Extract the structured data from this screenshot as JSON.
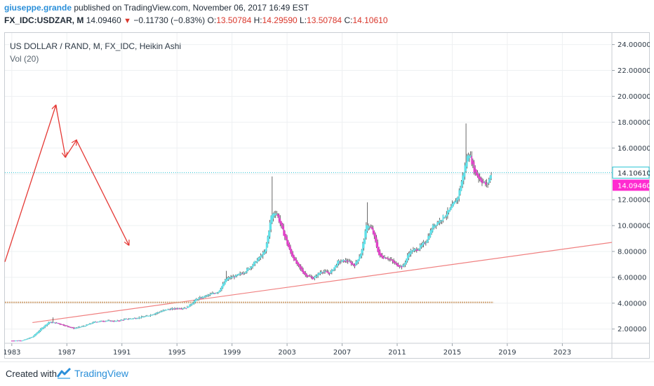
{
  "header": {
    "username": "giuseppe.grande",
    "published_text": "published on TradingView.com, November 06, 2017 16:49 EST",
    "symbol": "FX_IDC:USDZAR, M",
    "last": "14.09460",
    "change_arrow": "▼",
    "change": "−0.11730 (−0.83%)",
    "o_label": "O:",
    "o_value": "13.50784",
    "h_label": "H:",
    "h_value": "14.29590",
    "l_label": "L:",
    "l_value": "13.50784",
    "c_label": "C:",
    "c_value": "14.10610"
  },
  "footer": {
    "created_with": "Created with",
    "brand": "TradingView",
    "logo_icon": "tradingview-logo-icon"
  },
  "colors": {
    "up_body": "#5fe0e8",
    "down_body": "#e040c8",
    "wick": "#444444",
    "trendline": "#f08080",
    "hline": "#d2a679",
    "arrows": "#e53935",
    "last_line": "#29c5d4",
    "close_badge": "#ff2bd0",
    "last_badge_border": "#29c5d4"
  },
  "chart_data": {
    "type": "candlestick",
    "title": "US DOLLAR / RAND, M, FX_IDC, Heikin Ashi",
    "indicator": "Vol (20)",
    "style": "Heikin Ashi",
    "timeframe": "Monthly",
    "x_axis": {
      "ticks": [
        "1983",
        "1987",
        "1991",
        "1995",
        "1999",
        "2003",
        "2007",
        "2011",
        "2015",
        "2019",
        "2023"
      ],
      "range": [
        1982.5,
        2026.6
      ]
    },
    "y_axis": {
      "ticks": [
        "2.00000",
        "4.00000",
        "6.00000",
        "8.00000",
        "10.00000",
        "12.00000",
        "14.00000",
        "16.00000",
        "18.00000",
        "20.00000",
        "22.00000",
        "24.00000"
      ],
      "range": [
        0.9,
        24.9
      ],
      "side": "right"
    },
    "close_points": [
      [
        1983.0,
        1.1
      ],
      [
        1983.8,
        1.12
      ],
      [
        1984.5,
        1.4
      ],
      [
        1985.2,
        2.1
      ],
      [
        1985.7,
        2.55
      ],
      [
        1986.3,
        2.45
      ],
      [
        1986.9,
        2.25
      ],
      [
        1987.5,
        2.05
      ],
      [
        1988.3,
        2.25
      ],
      [
        1989.0,
        2.55
      ],
      [
        1989.8,
        2.65
      ],
      [
        1990.5,
        2.6
      ],
      [
        1991.2,
        2.75
      ],
      [
        1992.0,
        2.85
      ],
      [
        1992.8,
        3.0
      ],
      [
        1993.5,
        3.25
      ],
      [
        1994.2,
        3.5
      ],
      [
        1995.0,
        3.6
      ],
      [
        1995.7,
        3.65
      ],
      [
        1996.4,
        4.3
      ],
      [
        1997.2,
        4.6
      ],
      [
        1998.0,
        4.9
      ],
      [
        1998.6,
        5.9
      ],
      [
        1999.3,
        6.1
      ],
      [
        2000.0,
        6.5
      ],
      [
        2000.7,
        7.2
      ],
      [
        2001.4,
        8.0
      ],
      [
        2001.85,
        10.8
      ],
      [
        2002.2,
        11.1
      ],
      [
        2002.7,
        9.5
      ],
      [
        2003.2,
        8.0
      ],
      [
        2003.7,
        7.0
      ],
      [
        2004.3,
        6.2
      ],
      [
        2004.9,
        5.9
      ],
      [
        2005.5,
        6.5
      ],
      [
        2006.1,
        6.3
      ],
      [
        2006.7,
        7.2
      ],
      [
        2007.3,
        7.3
      ],
      [
        2007.9,
        6.9
      ],
      [
        2008.4,
        8.0
      ],
      [
        2008.8,
        10.2
      ],
      [
        2009.2,
        9.6
      ],
      [
        2009.7,
        7.6
      ],
      [
        2010.3,
        7.5
      ],
      [
        2010.9,
        7.0
      ],
      [
        2011.4,
        6.8
      ],
      [
        2011.9,
        8.0
      ],
      [
        2012.5,
        8.2
      ],
      [
        2013.1,
        8.8
      ],
      [
        2013.6,
        10.0
      ],
      [
        2014.2,
        10.5
      ],
      [
        2014.8,
        11.2
      ],
      [
        2015.4,
        12.2
      ],
      [
        2015.9,
        14.5
      ],
      [
        2016.2,
        15.8
      ],
      [
        2016.6,
        14.2
      ],
      [
        2017.0,
        13.6
      ],
      [
        2017.5,
        13.1
      ],
      [
        2017.85,
        14.1
      ]
    ],
    "spikes": [
      [
        1986.0,
        2.9
      ],
      [
        1998.6,
        6.5
      ],
      [
        2001.95,
        13.8
      ],
      [
        2008.85,
        11.8
      ],
      [
        2016.0,
        17.9
      ]
    ],
    "drawings": {
      "trendline": {
        "from": [
          1984.5,
          2.5
        ],
        "to": [
          2026.6,
          8.7
        ]
      },
      "horizontal_line": {
        "price": 4.06,
        "from_x": 1982.5,
        "to_x": 2018.0
      },
      "last_price_line": {
        "price": 14.1
      },
      "arrows": [
        [
          [
            1982.5,
            7.2
          ],
          [
            1986.2,
            19.3
          ]
        ],
        [
          [
            1986.2,
            19.3
          ],
          [
            1986.9,
            15.3
          ]
        ],
        [
          [
            1986.9,
            15.3
          ],
          [
            1987.7,
            16.6
          ]
        ],
        [
          [
            1987.7,
            16.6
          ],
          [
            1991.5,
            8.5
          ]
        ]
      ]
    },
    "last_labels": {
      "last": "14.10610",
      "close": "14.09460"
    }
  }
}
